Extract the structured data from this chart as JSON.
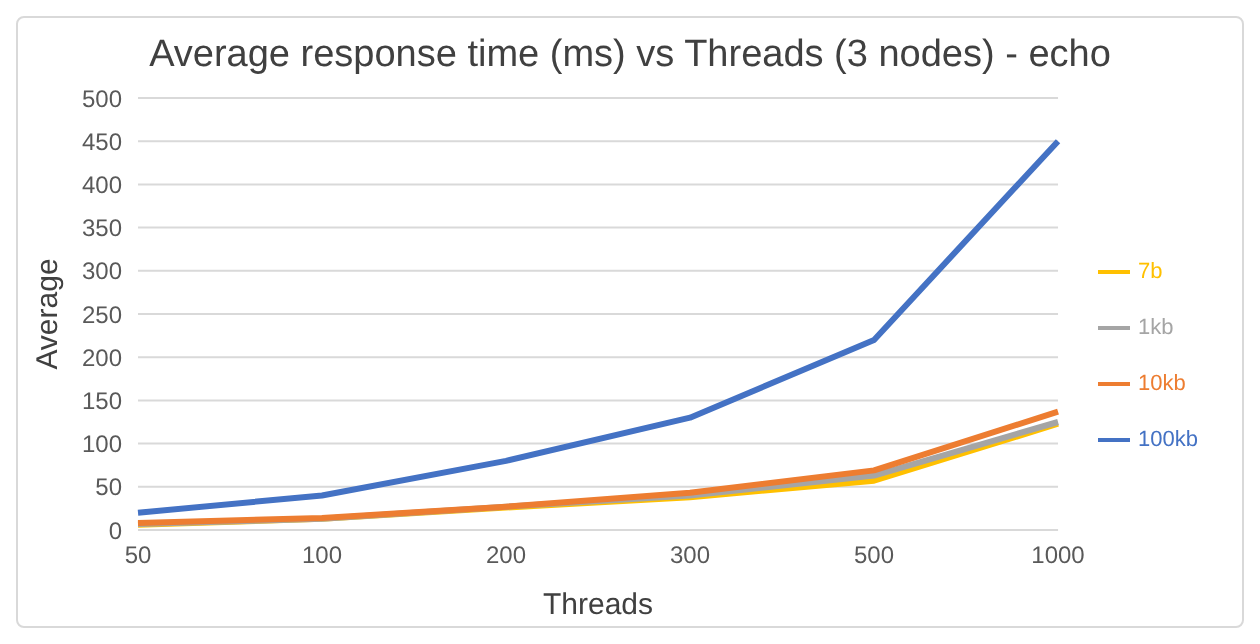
{
  "chart_data": {
    "type": "line",
    "title": "Average response time (ms) vs Threads (3 nodes) - echo",
    "xlabel": "Threads",
    "ylabel": "Average",
    "categories": [
      "50",
      "100",
      "200",
      "300",
      "500",
      "1000"
    ],
    "series": [
      {
        "name": "7b",
        "color": "#ffc000",
        "values": [
          6,
          13,
          26,
          38,
          57,
          123
        ]
      },
      {
        "name": "1kb",
        "color": "#a5a5a5",
        "values": [
          7,
          13,
          27,
          40,
          63,
          125
        ]
      },
      {
        "name": "10kb",
        "color": "#ed7d31",
        "values": [
          8,
          14,
          27,
          43,
          69,
          137
        ]
      },
      {
        "name": "100kb",
        "color": "#4472c4",
        "values": [
          20,
          40,
          80,
          130,
          220,
          450
        ]
      }
    ],
    "ylim": [
      0,
      500
    ],
    "yticks": [
      0,
      50,
      100,
      150,
      200,
      250,
      300,
      350,
      400,
      450,
      500
    ],
    "grid": "y",
    "legend": "right",
    "marker": "none",
    "line_style": "solid"
  }
}
